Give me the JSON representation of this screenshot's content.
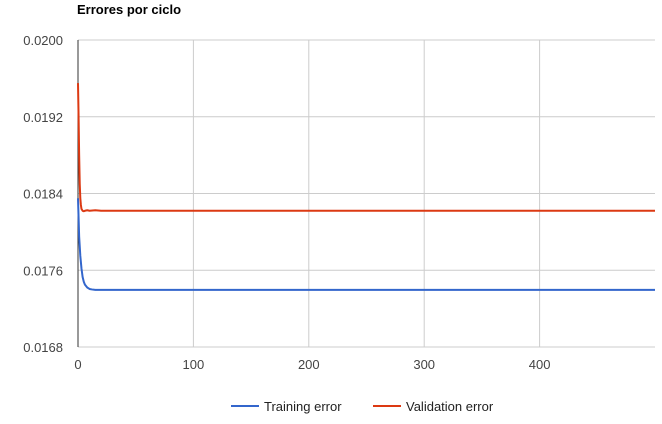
{
  "chart_data": {
    "type": "line",
    "title": "Errores por ciclo",
    "xlim": [
      0,
      500
    ],
    "ylim": [
      0.0168,
      0.02
    ],
    "x_ticks": [
      0,
      100,
      200,
      300,
      400
    ],
    "x_tick_labels": [
      "0",
      "100",
      "200",
      "300",
      "400"
    ],
    "y_ticks": [
      0.0168,
      0.0176,
      0.0184,
      0.0192,
      0.02
    ],
    "y_tick_labels": [
      "0.0168",
      "0.0176",
      "0.0184",
      "0.0192",
      "0.0200"
    ],
    "grid": true,
    "legend_position": "bottom",
    "series": [
      {
        "name": "Training error",
        "color": "#3366cc",
        "x": [
          0,
          1,
          2,
          3,
          4,
          5,
          6,
          8,
          10,
          12,
          15,
          20,
          30,
          100,
          200,
          300,
          400,
          500
        ],
        "y": [
          0.01835,
          0.01795,
          0.01775,
          0.01762,
          0.01753,
          0.01748,
          0.01745,
          0.01742,
          0.017405,
          0.0174,
          0.017395,
          0.017395,
          0.017395,
          0.017395,
          0.017395,
          0.017395,
          0.017395,
          0.017395
        ]
      },
      {
        "name": "Validation error",
        "color": "#dc3912",
        "x": [
          0,
          0.5,
          1,
          1.5,
          2,
          2.5,
          3,
          4,
          5,
          6,
          8,
          10,
          15,
          20,
          100,
          200,
          300,
          400,
          500
        ],
        "y": [
          0.01955,
          0.0192,
          0.0188,
          0.0185,
          0.01835,
          0.01828,
          0.01824,
          0.01822,
          0.018215,
          0.01822,
          0.018225,
          0.01822,
          0.018225,
          0.01822,
          0.01822,
          0.01822,
          0.01822,
          0.01822,
          0.01822
        ]
      }
    ]
  }
}
